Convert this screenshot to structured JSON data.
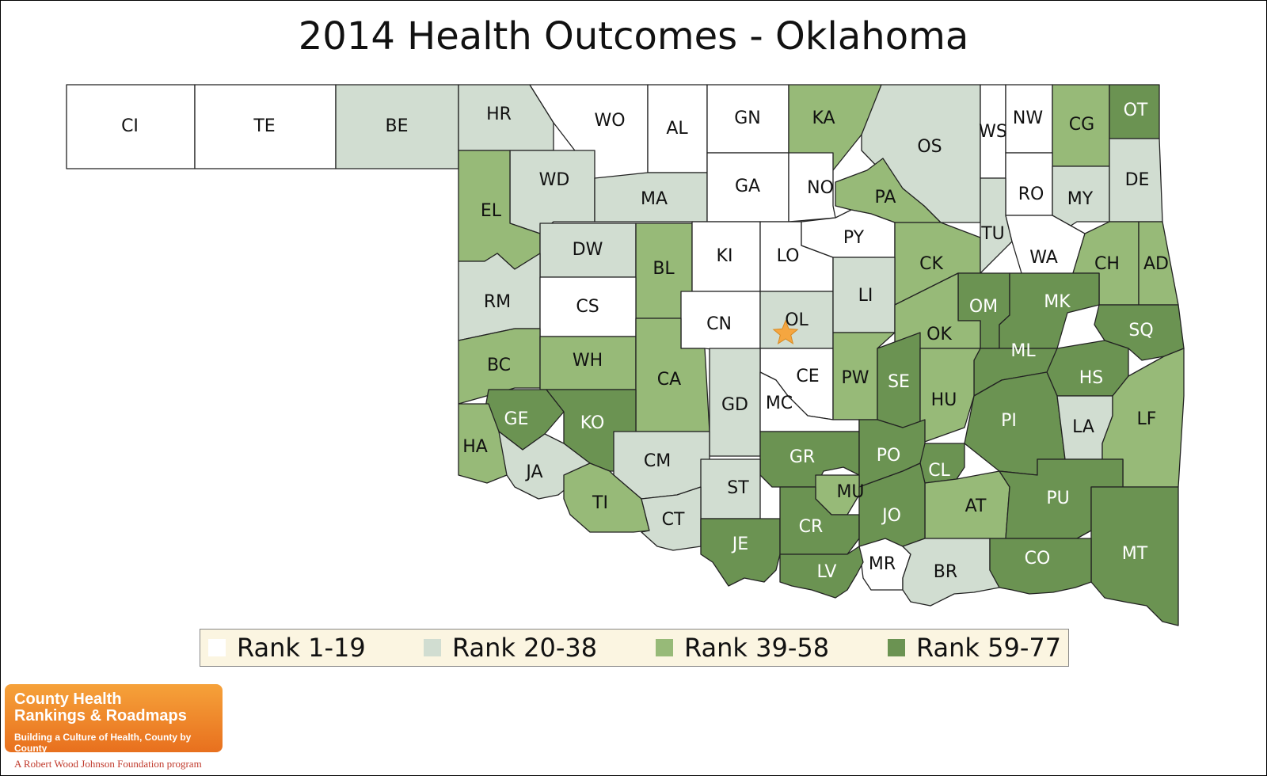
{
  "title": "2014 Health Outcomes - Oklahoma",
  "colors": {
    "rank_1_19": "#ffffff",
    "rank_20_38": "#d1ddd1",
    "rank_39_58": "#97ba78",
    "rank_59_77": "#6b9352",
    "star": "#f5a640",
    "legend_bg": "#fbf5e1"
  },
  "legend": [
    {
      "label": "Rank 1-19",
      "tier": 1
    },
    {
      "label": "Rank 20-38",
      "tier": 2
    },
    {
      "label": "Rank 39-58",
      "tier": 3
    },
    {
      "label": "Rank 59-77",
      "tier": 4
    }
  ],
  "marker": {
    "icon": "star-icon",
    "county": "OL"
  },
  "counties": [
    {
      "abbr": "CI",
      "tier": 1
    },
    {
      "abbr": "TE",
      "tier": 1
    },
    {
      "abbr": "BE",
      "tier": 2
    },
    {
      "abbr": "HR",
      "tier": 2
    },
    {
      "abbr": "WO",
      "tier": 1
    },
    {
      "abbr": "AL",
      "tier": 1
    },
    {
      "abbr": "GN",
      "tier": 1
    },
    {
      "abbr": "KA",
      "tier": 3
    },
    {
      "abbr": "OS",
      "tier": 2
    },
    {
      "abbr": "WS",
      "tier": 1
    },
    {
      "abbr": "NW",
      "tier": 1
    },
    {
      "abbr": "CG",
      "tier": 3
    },
    {
      "abbr": "OT",
      "tier": 4
    },
    {
      "abbr": "WD",
      "tier": 2
    },
    {
      "abbr": "MA",
      "tier": 2
    },
    {
      "abbr": "GA",
      "tier": 1
    },
    {
      "abbr": "NO",
      "tier": 1
    },
    {
      "abbr": "PA",
      "tier": 3
    },
    {
      "abbr": "RO",
      "tier": 1
    },
    {
      "abbr": "MY",
      "tier": 2
    },
    {
      "abbr": "DE",
      "tier": 2
    },
    {
      "abbr": "EL",
      "tier": 3
    },
    {
      "abbr": "DW",
      "tier": 2
    },
    {
      "abbr": "BL",
      "tier": 3
    },
    {
      "abbr": "KI",
      "tier": 1
    },
    {
      "abbr": "LO",
      "tier": 1
    },
    {
      "abbr": "PY",
      "tier": 1
    },
    {
      "abbr": "CK",
      "tier": 3
    },
    {
      "abbr": "TU",
      "tier": 2
    },
    {
      "abbr": "WA",
      "tier": 1
    },
    {
      "abbr": "CH",
      "tier": 3
    },
    {
      "abbr": "AD",
      "tier": 3
    },
    {
      "abbr": "RM",
      "tier": 2
    },
    {
      "abbr": "CS",
      "tier": 1
    },
    {
      "abbr": "CN",
      "tier": 1
    },
    {
      "abbr": "OL",
      "tier": 2
    },
    {
      "abbr": "LI",
      "tier": 2
    },
    {
      "abbr": "OM",
      "tier": 4
    },
    {
      "abbr": "MK",
      "tier": 4
    },
    {
      "abbr": "OK",
      "tier": 3
    },
    {
      "abbr": "SQ",
      "tier": 4
    },
    {
      "abbr": "BC",
      "tier": 3
    },
    {
      "abbr": "WH",
      "tier": 3
    },
    {
      "abbr": "CA",
      "tier": 3
    },
    {
      "abbr": "CE",
      "tier": 1
    },
    {
      "abbr": "PW",
      "tier": 3
    },
    {
      "abbr": "SE",
      "tier": 4
    },
    {
      "abbr": "ML",
      "tier": 4
    },
    {
      "abbr": "HS",
      "tier": 4
    },
    {
      "abbr": "GE",
      "tier": 4
    },
    {
      "abbr": "KO",
      "tier": 4
    },
    {
      "abbr": "GD",
      "tier": 2
    },
    {
      "abbr": "MC",
      "tier": 1
    },
    {
      "abbr": "HU",
      "tier": 3
    },
    {
      "abbr": "PI",
      "tier": 4
    },
    {
      "abbr": "LA",
      "tier": 2
    },
    {
      "abbr": "LF",
      "tier": 3
    },
    {
      "abbr": "HA",
      "tier": 3
    },
    {
      "abbr": "JA",
      "tier": 2
    },
    {
      "abbr": "CM",
      "tier": 2
    },
    {
      "abbr": "GR",
      "tier": 4
    },
    {
      "abbr": "PO",
      "tier": 4
    },
    {
      "abbr": "CL",
      "tier": 4
    },
    {
      "abbr": "TI",
      "tier": 3
    },
    {
      "abbr": "ST",
      "tier": 2
    },
    {
      "abbr": "MU",
      "tier": 3
    },
    {
      "abbr": "AT",
      "tier": 3
    },
    {
      "abbr": "PU",
      "tier": 4
    },
    {
      "abbr": "CT",
      "tier": 2
    },
    {
      "abbr": "JE",
      "tier": 4
    },
    {
      "abbr": "CR",
      "tier": 4
    },
    {
      "abbr": "JO",
      "tier": 4
    },
    {
      "abbr": "MT",
      "tier": 4
    },
    {
      "abbr": "MR",
      "tier": 1
    },
    {
      "abbr": "BR",
      "tier": 2
    },
    {
      "abbr": "CO",
      "tier": 4
    },
    {
      "abbr": "LV",
      "tier": 4
    }
  ],
  "logo": {
    "line1": "County Health",
    "line2": "Rankings & Roadmaps",
    "tagline": "Building a Culture of Health, County by County",
    "program": "A Robert Wood Johnson Foundation program"
  }
}
